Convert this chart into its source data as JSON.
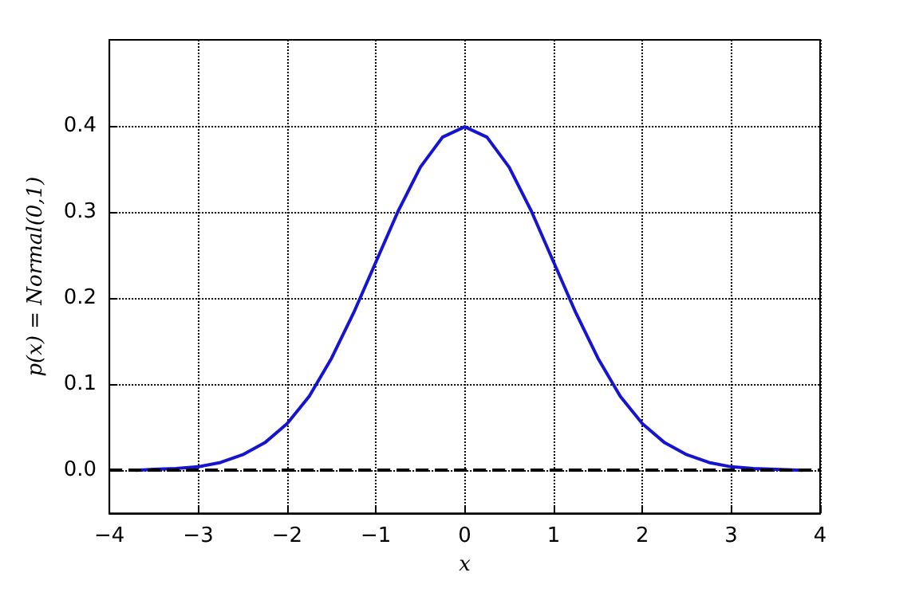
{
  "chart_data": {
    "type": "line",
    "xlabel": "x",
    "ylabel": "p(x) = Normal(0,1)",
    "x": [
      -3.7,
      -3.5,
      -3.25,
      -3,
      -2.75,
      -2.5,
      -2.25,
      -2,
      -1.75,
      -1.5,
      -1.25,
      -1,
      -0.75,
      -0.5,
      -0.25,
      0,
      0.25,
      0.5,
      0.75,
      1,
      1.25,
      1.5,
      1.75,
      2,
      2.25,
      2.5,
      2.75,
      3,
      3.25,
      3.5,
      3.8
    ],
    "series": [
      {
        "color": "#1515d0",
        "values": [
          0,
          0.001,
          0.002,
          0.004,
          0.009,
          0.018,
          0.032,
          0.054,
          0.086,
          0.13,
          0.183,
          0.242,
          0.301,
          0.352,
          0.387,
          0.399,
          0.387,
          0.352,
          0.301,
          0.242,
          0.183,
          0.13,
          0.086,
          0.054,
          0.032,
          0.018,
          0.009,
          0.004,
          0.002,
          0.001,
          0
        ]
      }
    ],
    "xlim": [
      -4,
      4
    ],
    "ylim": [
      -0.05,
      0.5
    ],
    "xticks": [
      {
        "value": -4,
        "label": "−4"
      },
      {
        "value": -3,
        "label": "−3"
      },
      {
        "value": -2,
        "label": "−2"
      },
      {
        "value": -1,
        "label": "−1"
      },
      0,
      1,
      2,
      3,
      4
    ],
    "yticks": [
      {
        "value": 0,
        "label": "0.0"
      },
      {
        "value": 0.1,
        "label": "0.1"
      },
      {
        "value": 0.2,
        "label": "0.2"
      },
      {
        "value": 0.3,
        "label": "0.3"
      },
      {
        "value": 0.4,
        "label": "0.4"
      }
    ],
    "ref_lines": [
      {
        "axis": "y",
        "value": 0,
        "label": null,
        "color": "#000000",
        "line_style": "dashed"
      }
    ],
    "grid": true,
    "line_style": "solid",
    "marker": "none"
  }
}
